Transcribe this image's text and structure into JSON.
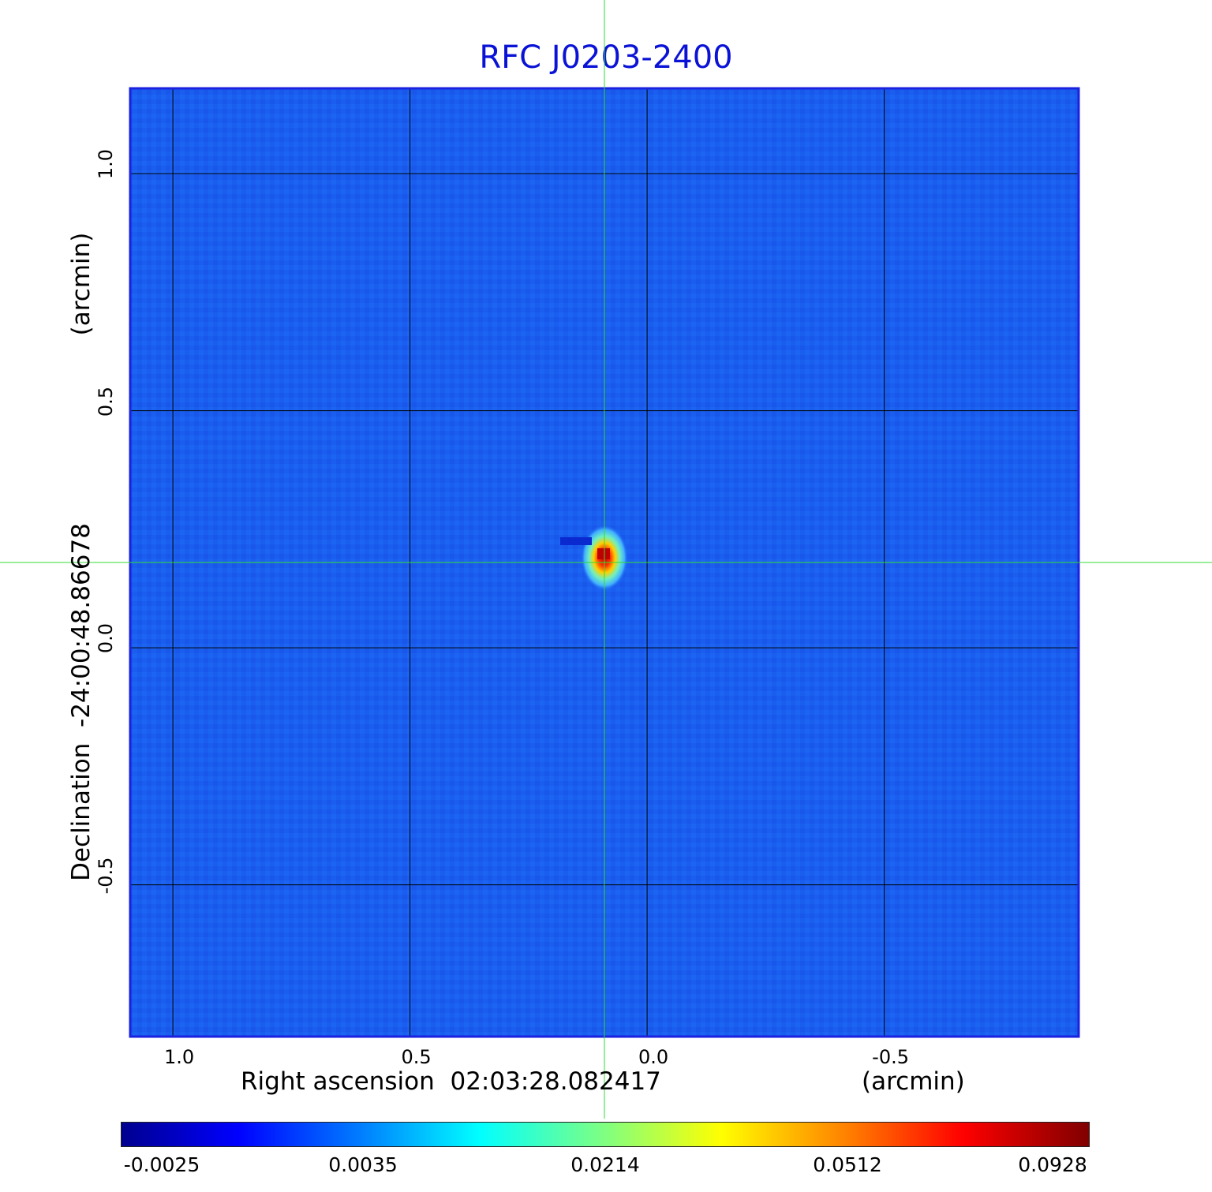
{
  "chart_data": {
    "type": "heatmap",
    "title": "RFC J0203-2400",
    "xlabel": "Right ascension  02:03:28.082417",
    "xunit": "(arcmin)",
    "ylabel": "Declination  -24:00:48.86678",
    "yunit": "(arcmin)",
    "xlim": [
      1.09,
      -0.91
    ],
    "ylim": [
      -0.82,
      1.18
    ],
    "x_ticks": [
      {
        "value": 1.0,
        "label": "1.0"
      },
      {
        "value": 0.5,
        "label": "0.5"
      },
      {
        "value": 0.0,
        "label": "0.0"
      },
      {
        "value": -0.5,
        "label": "-0.5"
      }
    ],
    "y_ticks": [
      {
        "value": 1.0,
        "label": "1.0"
      },
      {
        "value": 0.5,
        "label": "0.5"
      },
      {
        "value": 0.0,
        "label": "0.0"
      },
      {
        "value": -0.5,
        "label": "-0.5"
      }
    ],
    "grid": true,
    "crosshair": {
      "x": 0.09,
      "y": 0.18
    },
    "source": {
      "x": 0.09,
      "y": 0.19,
      "peak": 0.0928
    },
    "colorbar": {
      "ticks": [
        {
          "value": -0.0025,
          "label": "-0.0025"
        },
        {
          "value": 0.0035,
          "label": "0.0035"
        },
        {
          "value": 0.0214,
          "label": "0.0214"
        },
        {
          "value": 0.0512,
          "label": "0.0512"
        },
        {
          "value": 0.0928,
          "label": "0.0928"
        }
      ],
      "colormap": "jet"
    }
  },
  "colors": {
    "title": "#0a12d6",
    "frame": "#1a22e0",
    "crosshair": "#33dd33",
    "background_map": "#1a5cf0"
  }
}
